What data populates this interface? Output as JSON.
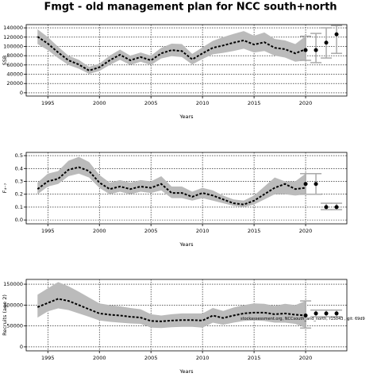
{
  "title": "Fmgt - old management plan for NCC south+north",
  "chart_data": [
    {
      "type": "line",
      "ylabel": "SSB",
      "xlabel": "Years",
      "x": [
        1994,
        1995,
        1996,
        1997,
        1998,
        1999,
        2000,
        2001,
        2002,
        2003,
        2004,
        2005,
        2006,
        2007,
        2008,
        2009,
        2010,
        2011,
        2012,
        2013,
        2014,
        2015,
        2016,
        2017,
        2018,
        2019,
        2020
      ],
      "values": [
        121000,
        106000,
        87000,
        70000,
        61000,
        48000,
        55000,
        70000,
        82000,
        70000,
        77000,
        70000,
        85000,
        92000,
        90000,
        72000,
        85000,
        97000,
        102000,
        108000,
        113000,
        104000,
        109000,
        97000,
        94000,
        85000,
        94000
      ],
      "lower": [
        105000,
        92000,
        75000,
        60000,
        52000,
        41000,
        47000,
        60000,
        71000,
        60000,
        67000,
        60000,
        74000,
        79000,
        77000,
        61000,
        73000,
        83000,
        86000,
        90000,
        95000,
        87000,
        90000,
        80000,
        76000,
        67000,
        70000
      ],
      "upper": [
        137000,
        120000,
        99000,
        80000,
        71000,
        56000,
        63000,
        80000,
        93000,
        80000,
        87000,
        80000,
        97000,
        106000,
        105000,
        84000,
        98000,
        112000,
        120000,
        127000,
        133000,
        123000,
        130000,
        116000,
        113000,
        105000,
        122000
      ],
      "points": {
        "x": [
          2020,
          2021,
          2022,
          2023
        ],
        "values": [
          92000,
          92000,
          108000,
          126000
        ],
        "lower": [
          70000,
          65000,
          75000,
          85000
        ],
        "upper": [
          122000,
          128000,
          140000,
          145000
        ]
      },
      "xlim": [
        1992.9,
        2024
      ],
      "ylim": [
        -7000,
        147000
      ],
      "xticks": [
        1995,
        2000,
        2005,
        2010,
        2015,
        2020
      ],
      "yticks": [
        0,
        20000,
        40000,
        60000,
        80000,
        100000,
        120000,
        140000
      ],
      "grid": true,
      "color": "#000000",
      "band_color": "#bbbbbb",
      "errorbar_color": "#aaaaaa"
    },
    {
      "type": "line",
      "ylabel": "F₄₋₇",
      "xlabel": "Years",
      "x": [
        1994,
        1995,
        1996,
        1997,
        1998,
        1999,
        2000,
        2001,
        2002,
        2003,
        2004,
        2005,
        2006,
        2007,
        2008,
        2009,
        2010,
        2011,
        2012,
        2013,
        2014,
        2015,
        2016,
        2017,
        2018,
        2019,
        2020
      ],
      "values": [
        0.24,
        0.3,
        0.32,
        0.39,
        0.41,
        0.38,
        0.29,
        0.24,
        0.26,
        0.24,
        0.26,
        0.25,
        0.28,
        0.21,
        0.21,
        0.18,
        0.21,
        0.19,
        0.16,
        0.13,
        0.12,
        0.15,
        0.2,
        0.25,
        0.28,
        0.24,
        0.25
      ],
      "lower": [
        0.2,
        0.26,
        0.28,
        0.34,
        0.36,
        0.33,
        0.25,
        0.2,
        0.22,
        0.2,
        0.22,
        0.21,
        0.23,
        0.17,
        0.17,
        0.15,
        0.17,
        0.15,
        0.13,
        0.11,
        0.1,
        0.12,
        0.16,
        0.2,
        0.2,
        0.19,
        0.2
      ],
      "upper": [
        0.29,
        0.36,
        0.38,
        0.46,
        0.49,
        0.45,
        0.35,
        0.29,
        0.31,
        0.29,
        0.31,
        0.3,
        0.34,
        0.26,
        0.26,
        0.22,
        0.25,
        0.23,
        0.19,
        0.16,
        0.15,
        0.19,
        0.26,
        0.33,
        0.3,
        0.3,
        0.36
      ],
      "points": {
        "x": [
          2020,
          2021,
          2022,
          2023
        ],
        "values": [
          0.28,
          0.28,
          0.1,
          0.1
        ],
        "lower": [
          0.2,
          0.2,
          0.08,
          0.08
        ],
        "upper": [
          0.36,
          0.36,
          0.13,
          0.13
        ]
      },
      "xlim": [
        1992.9,
        2024
      ],
      "ylim": [
        -0.03,
        0.525
      ],
      "xticks": [
        1995,
        2000,
        2005,
        2010,
        2015,
        2020
      ],
      "yticks": [
        {
          "value": 0,
          "label": "0.0"
        },
        0.1,
        0.2,
        0.3,
        0.4,
        0.5
      ],
      "grid": true,
      "color": "#000000",
      "band_color": "#bbbbbb",
      "errorbar_color": "#aaaaaa"
    },
    {
      "type": "line",
      "ylabel": "Recruits (age 2)",
      "xlabel": "Years",
      "annotation": "stockassessment.org, NCCsouth_and_north, r15043 , git: 69d9",
      "x": [
        1994,
        1995,
        1996,
        1997,
        1998,
        1999,
        2000,
        2001,
        2002,
        2003,
        2004,
        2005,
        2006,
        2007,
        2008,
        2009,
        2010,
        2011,
        2012,
        2013,
        2014,
        2015,
        2016,
        2017,
        2018,
        2019,
        2020
      ],
      "values": [
        95000,
        105000,
        115000,
        110000,
        100000,
        90000,
        80000,
        77000,
        75000,
        72000,
        70000,
        62000,
        61000,
        63000,
        64000,
        64000,
        63000,
        75000,
        69000,
        75000,
        80000,
        82000,
        82000,
        78000,
        80000,
        77000,
        75000
      ],
      "lower": [
        70000,
        85000,
        92000,
        88000,
        80000,
        72000,
        63000,
        60000,
        58000,
        56000,
        55000,
        46000,
        45000,
        47000,
        48000,
        48000,
        46000,
        58000,
        53000,
        58000,
        62000,
        63000,
        62000,
        58000,
        58000,
        55000,
        45000
      ],
      "upper": [
        125000,
        140000,
        155000,
        145000,
        132000,
        118000,
        104000,
        100000,
        97000,
        93000,
        90000,
        78000,
        75000,
        78000,
        80000,
        80000,
        80000,
        93000,
        86000,
        94000,
        100000,
        104000,
        103000,
        98000,
        103000,
        100000,
        110000
      ],
      "points": {
        "x": [
          2020,
          2021,
          2022,
          2023
        ],
        "values": [
          75000,
          80000,
          80000,
          80000
        ],
        "lower": [
          45000,
          72000,
          72000,
          72000
        ],
        "upper": [
          110000,
          88000,
          88000,
          88000
        ]
      },
      "xlim": [
        1992.9,
        2024
      ],
      "ylim": [
        -9600,
        161500
      ],
      "xticks": [
        1995,
        2000,
        2005,
        2010,
        2015,
        2020
      ],
      "yticks": [
        0,
        50000,
        100000,
        150000
      ],
      "grid": true,
      "color": "#000000",
      "band_color": "#bbbbbb",
      "errorbar_color": "#aaaaaa"
    }
  ]
}
